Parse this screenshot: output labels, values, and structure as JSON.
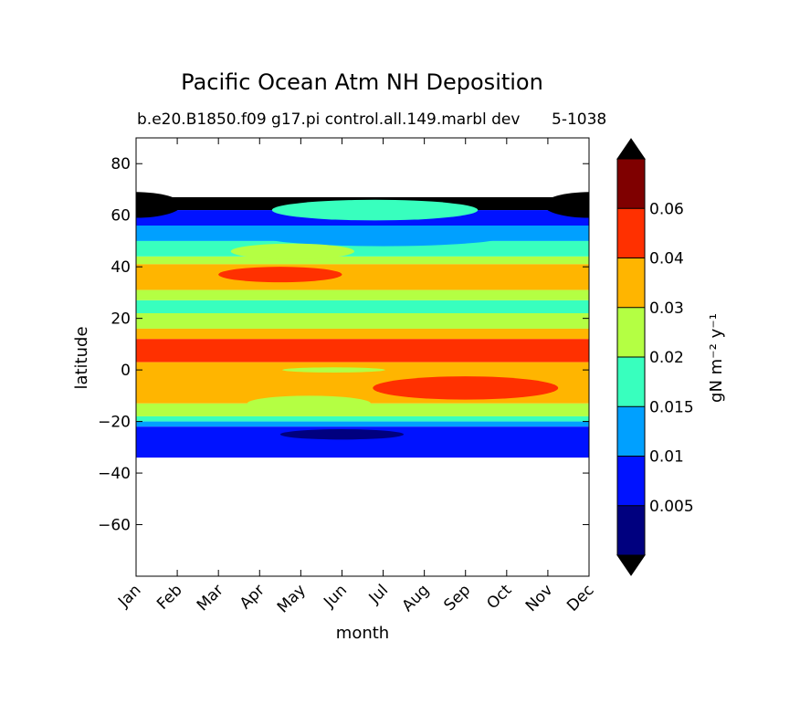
{
  "chart_data": {
    "type": "heatmap",
    "title": "Pacific Ocean Atm NH Deposition",
    "subtitle": "b.e20.B1850.f09 g17.pi control.all.149.marbl dev",
    "subtitle_right": "5-1038",
    "xlabel": "month",
    "ylabel": "latitude",
    "x_categories": [
      "Jan",
      "Feb",
      "Mar",
      "Apr",
      "May",
      "Jun",
      "Jul",
      "Aug",
      "Sep",
      "Oct",
      "Nov",
      "Dec"
    ],
    "yticks": [
      80,
      60,
      40,
      20,
      0,
      -20,
      -40,
      -60
    ],
    "ytick_labels": [
      "80",
      "60",
      "40",
      "20",
      "0",
      "−20",
      "−40",
      "−60"
    ],
    "ylim": [
      -80,
      90
    ],
    "data_lat_range": [
      -34,
      67
    ],
    "colorbar": {
      "label": "gN m⁻² y⁻¹",
      "levels": [
        0.005,
        0.01,
        0.015,
        0.02,
        0.03,
        0.04,
        0.06
      ],
      "tick_labels": [
        "0.005",
        "0.01",
        "0.015",
        "0.02",
        "0.03",
        "0.04",
        "0.06"
      ],
      "colors": [
        "#00007f",
        "#0012ff",
        "#00a0ff",
        "#38ffbe",
        "#b4ff43",
        "#ffb500",
        "#ff3000",
        "#7f0000"
      ],
      "extend_low_color": "#000000",
      "extend_high_color": "#000000"
    },
    "bands": [
      {
        "lat_top": 67,
        "lat_bottom": 62,
        "level": 8
      },
      {
        "lat_top": 62,
        "lat_bottom": 56,
        "level": 1
      },
      {
        "lat_top": 56,
        "lat_bottom": 50,
        "level": 2
      },
      {
        "lat_top": 50,
        "lat_bottom": 44,
        "level": 3
      },
      {
        "lat_top": 44,
        "lat_bottom": 41,
        "level": 4
      },
      {
        "lat_top": 41,
        "lat_bottom": 31,
        "level": 5
      },
      {
        "lat_top": 31,
        "lat_bottom": 27,
        "level": 4
      },
      {
        "lat_top": 27,
        "lat_bottom": 22,
        "level": 3
      },
      {
        "lat_top": 22,
        "lat_bottom": 16,
        "level": 4
      },
      {
        "lat_top": 16,
        "lat_bottom": 12,
        "level": 5
      },
      {
        "lat_top": 12,
        "lat_bottom": 3,
        "level": 6
      },
      {
        "lat_top": 3,
        "lat_bottom": -13,
        "level": 5
      },
      {
        "lat_top": -13,
        "lat_bottom": -18,
        "level": 4
      },
      {
        "lat_top": -18,
        "lat_bottom": -20,
        "level": 3
      },
      {
        "lat_top": -20,
        "lat_bottom": -22,
        "level": 2
      },
      {
        "lat_top": -22,
        "lat_bottom": -34,
        "level": 1
      }
    ],
    "features": [
      {
        "level": 8,
        "month": 0,
        "lat": 64,
        "month_width": 2.2,
        "lat_height": 10
      },
      {
        "level": 8,
        "month": 11,
        "lat": 64,
        "month_width": 2.2,
        "lat_height": 10
      },
      {
        "level": 3,
        "month": 5.8,
        "lat": 62,
        "month_width": 5.0,
        "lat_height": 8
      },
      {
        "level": 2,
        "month": 6.0,
        "lat": 52,
        "month_width": 6.0,
        "lat_height": 8
      },
      {
        "level": 4,
        "month": 3.8,
        "lat": 46,
        "month_width": 3.0,
        "lat_height": 6
      },
      {
        "level": 6,
        "month": 3.5,
        "lat": 37,
        "month_width": 3.0,
        "lat_height": 6
      },
      {
        "level": 4,
        "month": 4.8,
        "lat": 0,
        "month_width": 2.5,
        "lat_height": 2
      },
      {
        "level": 4,
        "month": 4.2,
        "lat": -13,
        "month_width": 3.0,
        "lat_height": 6
      },
      {
        "level": 6,
        "month": 8.0,
        "lat": -7,
        "month_width": 4.5,
        "lat_height": 9
      },
      {
        "level": 0,
        "month": 5.0,
        "lat": -25,
        "month_width": 3.0,
        "lat_height": 4
      }
    ]
  }
}
